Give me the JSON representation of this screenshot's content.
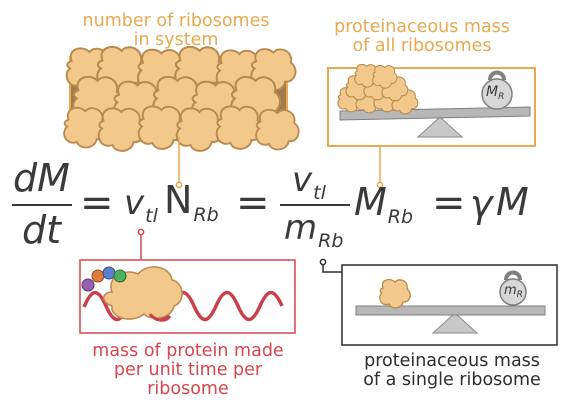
{
  "labels": {
    "num_ribosomes": [
      "number of ribosomes",
      "in system"
    ],
    "mass_all": [
      "proteinaceous mass",
      "of all ribosomes"
    ],
    "mass_rate": [
      "mass of protein made",
      "per unit time per",
      "ribosome"
    ],
    "mass_single": [
      "proteinaceous mass",
      "of a single ribosome"
    ]
  },
  "equation": {
    "lhs_numerator": "dM",
    "lhs_denominator": "dt",
    "equals": "=",
    "v_symbol": "v",
    "v_sub": "tl",
    "N_symbol": "N",
    "N_sub": "Rb",
    "frac_num_symbol": "v",
    "frac_num_sub": "tl",
    "frac_den_symbol": "m",
    "frac_den_sub": "Rb",
    "M_symbol": "M",
    "M_sub": "Rb",
    "gamma": "γ",
    "final_M": "M"
  },
  "weights": {
    "all": {
      "symbol": "M",
      "sub": "R"
    },
    "single": {
      "symbol": "m",
      "sub": "R"
    }
  },
  "colors": {
    "orange": "#e9a94f",
    "red": "#d9454f",
    "green": "#5bbf6a",
    "dark": "#3a3a3a",
    "ribosome": "#f2c98a",
    "ribosome_dark": "#b9894f"
  }
}
